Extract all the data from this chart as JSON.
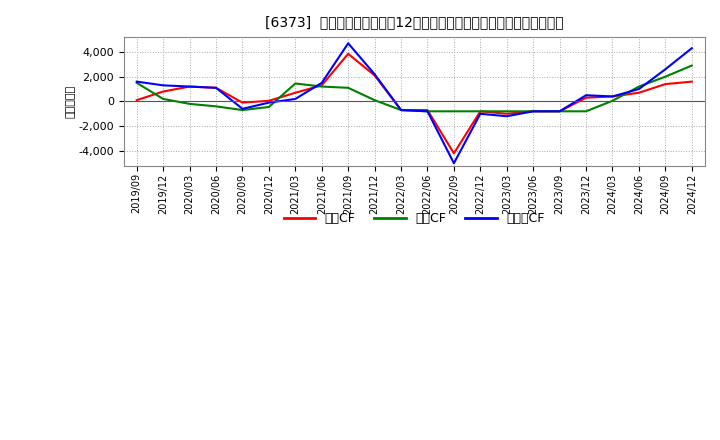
{
  "title": "[6373]  キャッシュフローの12か月移動合計の対前年同期増減額の推移",
  "ylabel": "（百万円）",
  "background_color": "#ffffff",
  "plot_bg_color": "#ffffff",
  "grid_color": "#aaaaaa",
  "ylim": [
    -5200,
    5200
  ],
  "yticks": [
    -4000,
    -2000,
    0,
    2000,
    4000
  ],
  "x_labels": [
    "2019/09",
    "2019/12",
    "2020/03",
    "2020/06",
    "2020/09",
    "2020/12",
    "2021/03",
    "2021/06",
    "2021/09",
    "2021/12",
    "2022/03",
    "2022/06",
    "2022/09",
    "2022/12",
    "2023/03",
    "2023/06",
    "2023/09",
    "2023/12",
    "2024/03",
    "2024/06",
    "2024/09",
    "2024/12"
  ],
  "operating_cf": [
    100,
    800,
    1200,
    1100,
    -100,
    50,
    700,
    1300,
    3850,
    2100,
    -700,
    -700,
    -4200,
    -800,
    -1000,
    -800,
    -800,
    300,
    400,
    700,
    1400,
    1600
  ],
  "investing_cf": [
    1500,
    200,
    -200,
    -400,
    -700,
    -450,
    1450,
    1200,
    1100,
    100,
    -700,
    -800,
    -800,
    -800,
    -800,
    -800,
    -800,
    -800,
    50,
    1200,
    2000,
    2900
  ],
  "free_cf": [
    1600,
    1300,
    1200,
    1100,
    -600,
    -100,
    200,
    1500,
    4700,
    2200,
    -700,
    -800,
    -5000,
    -1000,
    -1200,
    -800,
    -800,
    500,
    400,
    1000,
    2600,
    4300
  ],
  "colors": {
    "operating": "#ff0000",
    "investing": "#008000",
    "free": "#0000ff"
  },
  "legend_labels": [
    "営業CF",
    "投資CF",
    "フリーCF"
  ]
}
